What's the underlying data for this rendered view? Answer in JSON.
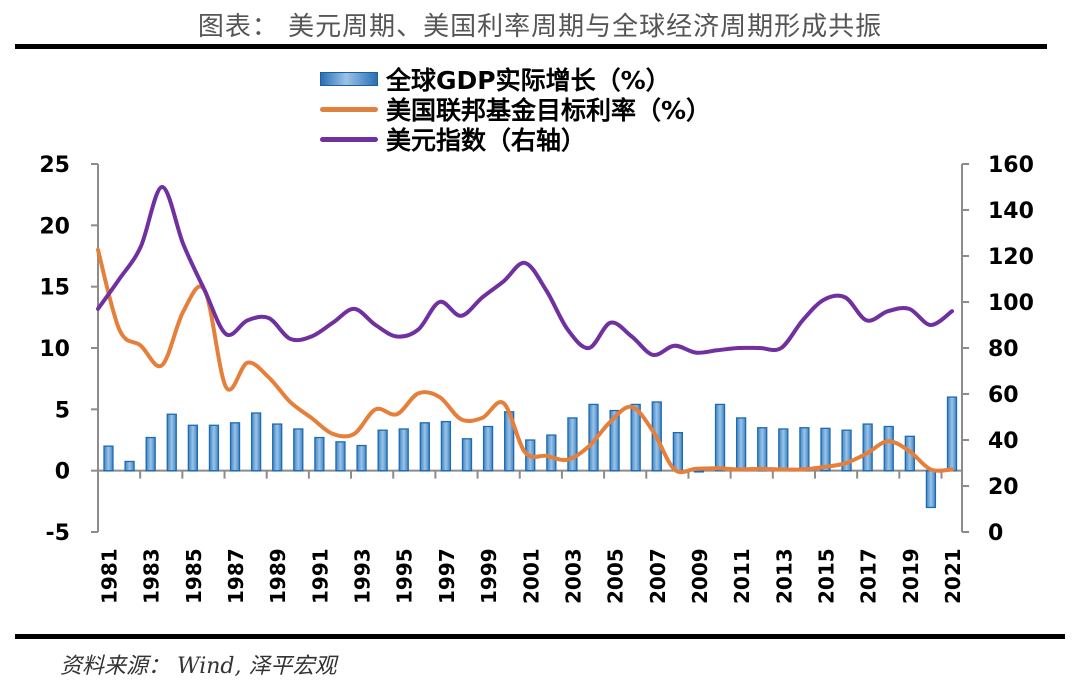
{
  "header": {
    "title": "图表： 美元周期、美国利率周期与全球经济周期形成共振"
  },
  "footer": {
    "source": "资料来源： Wind, 泽平宏观"
  },
  "legend": [
    {
      "label": "全球GDP实际增长（%）",
      "type": "bar",
      "color": "#5b9bd5"
    },
    {
      "label": "美国联邦基金目标利率（%）",
      "type": "line",
      "color": "#ed7d31"
    },
    {
      "label": "美元指数（右轴）",
      "type": "line",
      "color": "#7030a0"
    }
  ],
  "chart_data": {
    "type": "bar",
    "title": "美元周期、美国利率周期与全球经济周期形成共振",
    "xlabel": "",
    "ylabel": "",
    "categories": [
      1981,
      1982,
      1983,
      1984,
      1985,
      1986,
      1987,
      1988,
      1989,
      1990,
      1991,
      1992,
      1993,
      1994,
      1995,
      1996,
      1997,
      1998,
      1999,
      2000,
      2001,
      2002,
      2003,
      2004,
      2005,
      2006,
      2007,
      2008,
      2009,
      2010,
      2011,
      2012,
      2013,
      2014,
      2015,
      2016,
      2017,
      2018,
      2019,
      2020,
      2021
    ],
    "x_tick_labels": [
      "1981",
      "1983",
      "1985",
      "1987",
      "1989",
      "1991",
      "1993",
      "1995",
      "1997",
      "1999",
      "2001",
      "2003",
      "2005",
      "2007",
      "2009",
      "2011",
      "2013",
      "2015",
      "2017",
      "2019",
      "2021"
    ],
    "y_left": {
      "min": -5,
      "max": 25,
      "ticks": [
        25,
        20,
        15,
        10,
        5,
        0,
        -5
      ]
    },
    "y_right": {
      "min": 0,
      "max": 160,
      "ticks": [
        160,
        140,
        120,
        100,
        80,
        60,
        40,
        20,
        0
      ],
      "label": "右轴"
    },
    "grid": false,
    "legend_position": "top-center",
    "series": [
      {
        "name": "全球GDP实际增长（%）",
        "type": "bar",
        "axis": "left",
        "color": "#5b9bd5",
        "values": [
          2.0,
          0.75,
          2.7,
          4.6,
          3.7,
          3.7,
          3.9,
          4.7,
          3.8,
          3.4,
          2.7,
          2.35,
          2.05,
          3.3,
          3.4,
          3.9,
          4.0,
          2.6,
          3.6,
          4.8,
          2.5,
          2.9,
          4.3,
          5.4,
          4.9,
          5.4,
          5.6,
          3.1,
          -0.1,
          5.4,
          4.3,
          3.5,
          3.4,
          3.5,
          3.45,
          3.3,
          3.8,
          3.6,
          2.8,
          -3.0,
          6.0
        ]
      },
      {
        "name": "美国联邦基金目标利率（%）",
        "type": "line",
        "axis": "left",
        "color": "#ed7d31",
        "values": [
          18.0,
          11.5,
          10.2,
          8.6,
          13.0,
          14.7,
          6.8,
          8.8,
          7.6,
          5.6,
          4.3,
          3.0,
          3.0,
          5.0,
          4.6,
          6.3,
          6.0,
          4.2,
          4.3,
          5.5,
          1.5,
          1.2,
          0.9,
          2.0,
          4.0,
          5.2,
          3.2,
          0.1,
          0.15,
          0.2,
          0.1,
          0.15,
          0.1,
          0.1,
          0.3,
          0.6,
          1.4,
          2.4,
          1.6,
          0.1,
          0.1
        ]
      },
      {
        "name": "美元指数（右轴）",
        "type": "line",
        "axis": "right",
        "color": "#7030a0",
        "values": [
          97,
          110,
          124,
          150,
          125,
          105,
          86,
          92,
          93,
          84,
          85,
          91,
          97,
          90,
          85,
          88,
          100,
          94,
          102,
          109,
          117,
          105,
          88,
          80,
          91,
          85,
          77,
          81,
          78,
          79,
          80,
          80,
          80,
          92,
          101,
          102,
          92,
          96,
          97,
          90,
          96
        ]
      }
    ]
  }
}
